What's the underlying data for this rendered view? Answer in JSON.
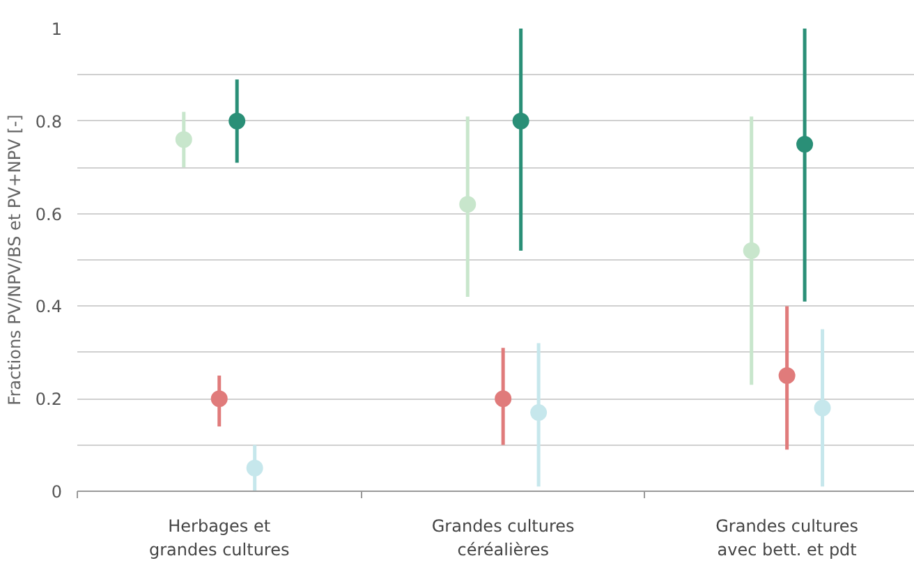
{
  "chart_data": {
    "type": "scatter",
    "ylabel": "Fractions PV/NPV/BS et PV+NPV [-]",
    "categories": [
      "Herbages et grandes cultures",
      "Grandes cultures céréalières",
      "Grandes cultures avec bett. et pdt"
    ],
    "series": [
      {
        "color": "#c8e6cc",
        "values": [
          0.76,
          0.62,
          0.52
        ],
        "errors": [
          [
            0.7,
            0.82
          ],
          [
            0.42,
            0.81
          ],
          [
            0.23,
            0.81
          ]
        ]
      },
      {
        "color": "#e07b7b",
        "values": [
          0.2,
          0.2,
          0.25
        ],
        "errors": [
          [
            0.14,
            0.25
          ],
          [
            0.1,
            0.31
          ],
          [
            0.09,
            0.4
          ]
        ]
      },
      {
        "color": "#2a8f77",
        "values": [
          0.8,
          0.8,
          0.75
        ],
        "errors": [
          [
            0.71,
            0.89
          ],
          [
            0.52,
            1.0
          ],
          [
            0.41,
            1.0
          ]
        ]
      },
      {
        "color": "#c6e7ec",
        "values": [
          0.05,
          0.17,
          0.18
        ],
        "errors": [
          [
            0.0,
            0.1
          ],
          [
            0.01,
            0.32
          ],
          [
            0.01,
            0.35
          ]
        ]
      }
    ],
    "ylim": [
      0,
      1
    ],
    "yticks": [
      0,
      {
        "value": 0.1,
        "label": null
      },
      0.2,
      {
        "value": 0.3,
        "label": null
      },
      0.4,
      {
        "value": 0.5,
        "label": null
      },
      0.6,
      {
        "value": 0.7,
        "label": null
      },
      0.8,
      {
        "value": 0.9,
        "label": null
      },
      1
    ],
    "grid": "y",
    "marker": "circle"
  }
}
